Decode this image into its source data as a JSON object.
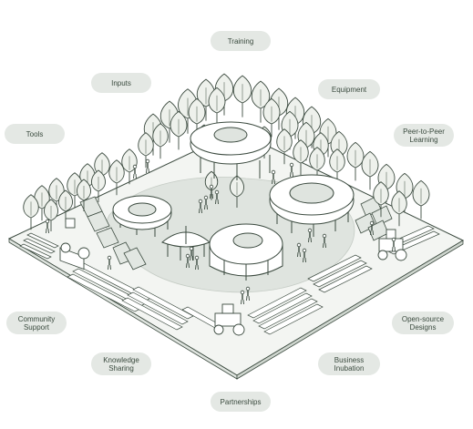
{
  "labels": {
    "training": "Training",
    "inputs": "Inputs",
    "equipment": "Equipment",
    "tools": "Tools",
    "peer_to_peer": "Peer-to-Peer\nLearning",
    "community_support": "Community\nSupport",
    "open_source_designs": "Open-source\nDesigns",
    "knowledge_sharing": "Knowledge\nSharing",
    "business_incubation": "Business\nInubation",
    "partnerships": "Partnerships"
  },
  "colors": {
    "line": "#3b4a3f",
    "platform": "#f3f5f2",
    "plaza": "#dfe4df",
    "tree": "#eef1ec",
    "pill": "#e4e8e4"
  },
  "icons": [
    "tree-icon",
    "person-icon",
    "tractor-icon",
    "solar-panel-icon",
    "pavilion-icon"
  ]
}
